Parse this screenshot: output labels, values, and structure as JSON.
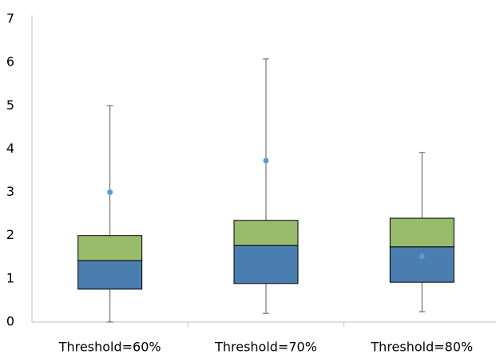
{
  "chart_data": {
    "type": "box",
    "categories": [
      "Threshold=60%",
      "Threshold=70%",
      "Threshold=80%"
    ],
    "min": [
      0,
      0.2,
      0.24
    ],
    "q1": [
      0.76,
      0.89,
      0.92
    ],
    "median": [
      1.42,
      1.77,
      1.74
    ],
    "q3": [
      2.0,
      2.35,
      2.4
    ],
    "max": [
      5.0,
      6.08,
      3.92
    ],
    "mean": [
      3.0,
      3.73,
      1.52
    ],
    "lower_color": "#4a7eb0",
    "upper_color": "#98bb6c",
    "mean_color": "#5b9bd5",
    "ylim": [
      0,
      7
    ],
    "yticks": [
      0,
      1,
      2,
      3,
      4,
      5,
      6,
      7
    ],
    "grid": false
  }
}
